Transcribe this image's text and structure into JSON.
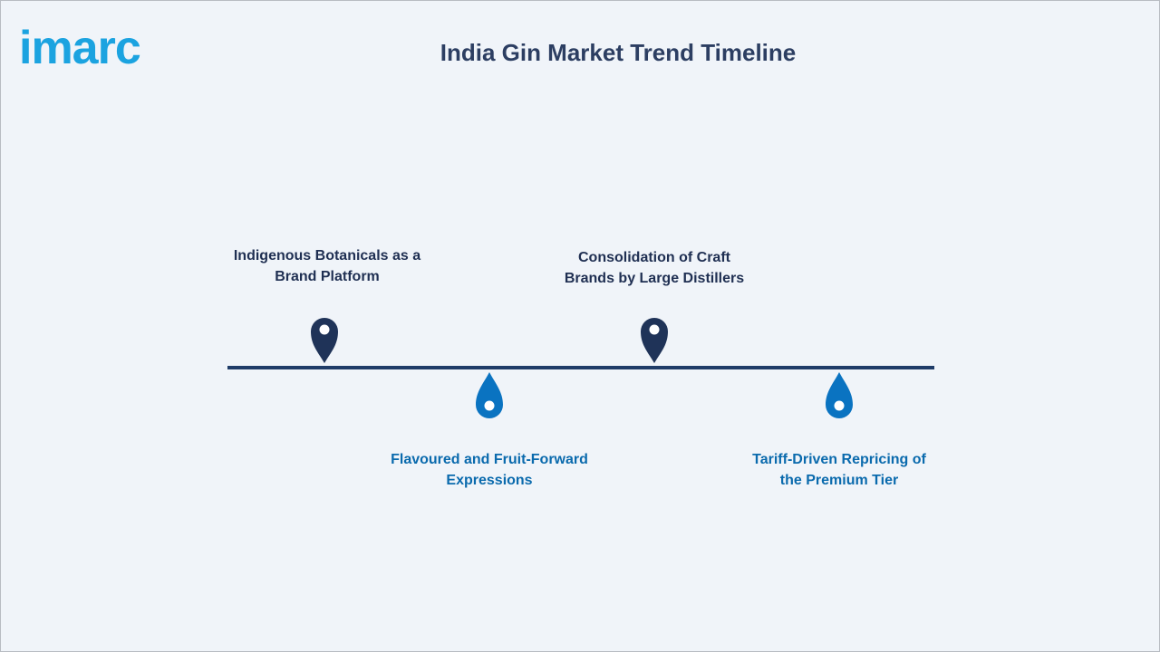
{
  "header": {
    "logo": "imarc",
    "title": "India Gin Market Trend Timeline"
  },
  "timeline": {
    "items": [
      {
        "label": "Indigenous Botanicals as a Brand Platform"
      },
      {
        "label": "Flavoured and Fruit-Forward Expressions"
      },
      {
        "label": "Consolidation of Craft Brands by Large Distillers"
      },
      {
        "label": "Tariff-Driven Repricing of the Premium Tier"
      }
    ]
  }
}
